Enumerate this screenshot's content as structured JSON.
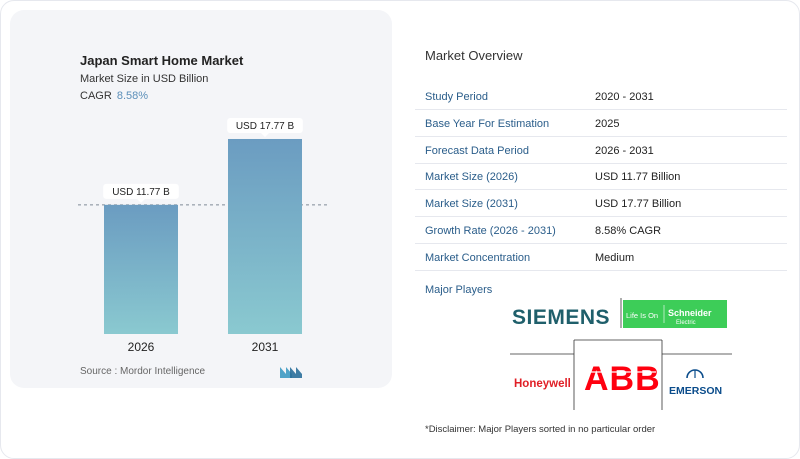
{
  "header": {
    "title": "Japan Smart Home Market",
    "subtitle": "Market Size in USD Billion",
    "cagr_label": "CAGR",
    "cagr_value": "8.58%"
  },
  "chart_data": {
    "type": "bar",
    "categories": [
      "2026",
      "2031"
    ],
    "values": [
      11.77,
      17.77
    ],
    "data_labels": [
      "USD 11.77 B",
      "USD 17.77 B"
    ],
    "title": "Japan Smart Home Market",
    "ylabel": "Market Size in USD Billion",
    "ylim": [
      0,
      19.5
    ],
    "grid": false,
    "reference_line_value": 11.77,
    "colors": {
      "bar_top": "#6b9cc1",
      "bar_bottom": "#8ac9d0"
    }
  },
  "footer": {
    "source": "Source :  Mordor Intelligence"
  },
  "overview": {
    "title": "Market Overview",
    "rows": [
      {
        "label": "Study Period",
        "value": "2020 - 2031"
      },
      {
        "label": "Base Year For Estimation",
        "value": "2025"
      },
      {
        "label": "Forecast Data Period",
        "value": "2026 - 2031"
      },
      {
        "label": "Market Size (2026)",
        "value": "USD 11.77 Billion"
      },
      {
        "label": "Market Size (2031)",
        "value": "USD 17.77 Billion"
      },
      {
        "label": "Growth Rate (2026 - 2031)",
        "value": "8.58% CAGR"
      },
      {
        "label": "Market Concentration",
        "value": "Medium"
      }
    ]
  },
  "players": {
    "title": "Major Players",
    "logos": [
      "SIEMENS",
      "Life Is On Schneider Electric",
      "Honeywell",
      "ABB",
      "EMERSON"
    ]
  },
  "disclaimer": "*Disclaimer: Major Players sorted in no particular order",
  "colors": {
    "accent": "#2a5d8a",
    "cagr": "#5b8fb9"
  }
}
